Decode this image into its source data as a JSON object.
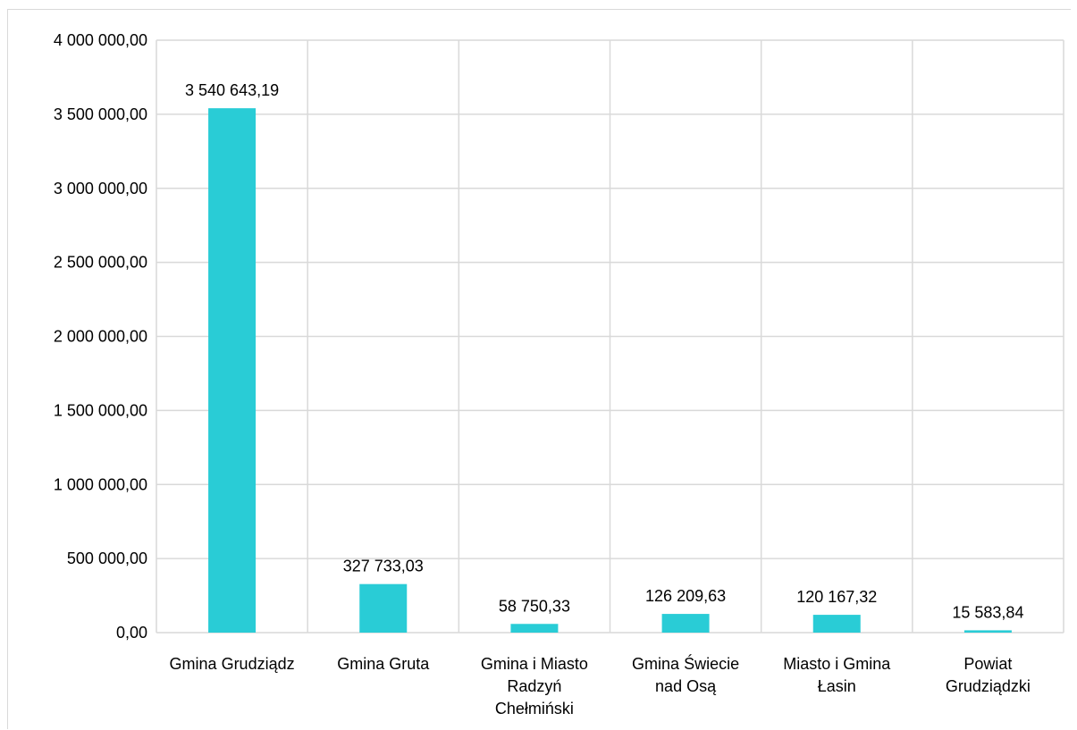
{
  "chart_data": {
    "type": "bar",
    "title": "",
    "xlabel": "",
    "ylabel": "",
    "categories": [
      "Gmina Grudziądz",
      "Gmina Gruta",
      "Gmina i Miasto Radzyń Chełmiński",
      "Gmina Świecie nad Osą",
      "Miasto i Gmina Łasin",
      "Powiat Grudziądzki"
    ],
    "category_lines": [
      [
        "Gmina Grudziądz"
      ],
      [
        "Gmina Gruta"
      ],
      [
        "Gmina i Miasto",
        "Radzyń",
        "Chełmiński"
      ],
      [
        "Gmina Świecie",
        "nad Osą"
      ],
      [
        "Miasto i Gmina",
        "Łasin"
      ],
      [
        "Powiat",
        "Grudziądzki"
      ]
    ],
    "values": [
      3540643.19,
      327733.03,
      58750.33,
      126209.63,
      120167.32,
      15583.84
    ],
    "data_labels": [
      "3 540 643,19",
      "327 733,03",
      "58 750,33",
      "126 209,63",
      "120 167,32",
      "15 583,84"
    ],
    "ylim": [
      0,
      4000000
    ],
    "yticks": [
      0,
      500000,
      1000000,
      1500000,
      2000000,
      2500000,
      3000000,
      3500000,
      4000000
    ],
    "ytick_labels": [
      "0,00",
      "500 000,00",
      "1 000 000,00",
      "1 500 000,00",
      "2 000 000,00",
      "2 500 000,00",
      "3 000 000,00",
      "3 500 000,00",
      "4 000 000,00"
    ],
    "grid": true,
    "legend": "none",
    "bar_color": "#29CCD6",
    "grid_color": "#D9D9D9"
  }
}
